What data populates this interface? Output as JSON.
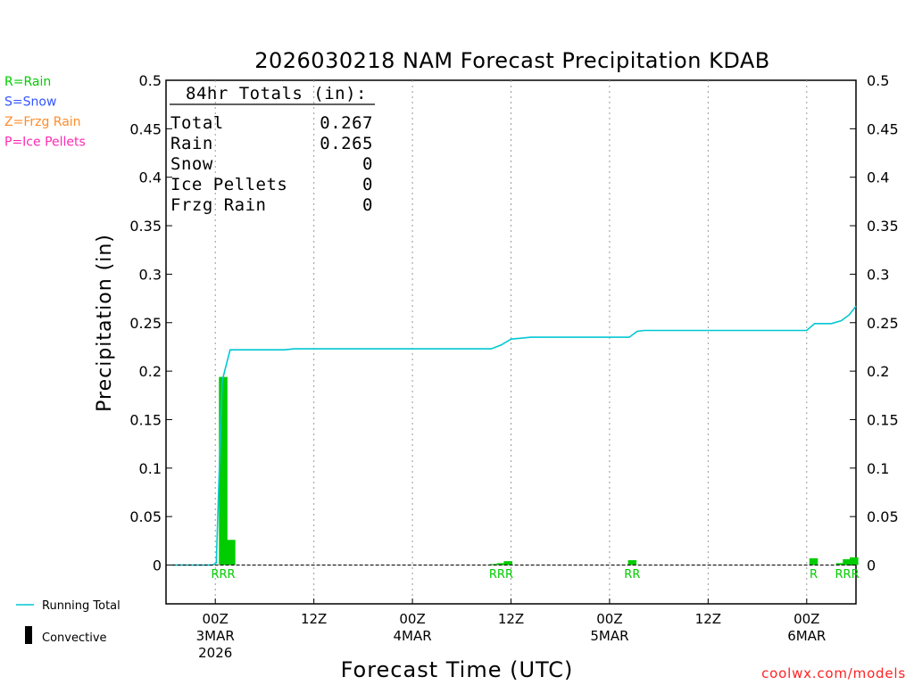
{
  "chart_data": {
    "type": "bar",
    "title": "2026030218 NAM Forecast Precipitation KDAB",
    "ylabel": "Precipitation (in)",
    "xlabel": "Forecast Time (UTC)",
    "ylim": [
      -0.04,
      0.5
    ],
    "xlim_hours": [
      -5,
      65
    ],
    "y_ticks": [
      {
        "v": 0.5,
        "label": "0.5"
      },
      {
        "v": 0.45,
        "label": "0.45"
      },
      {
        "v": 0.4,
        "label": "0.4"
      },
      {
        "v": 0.35,
        "label": "0.35"
      },
      {
        "v": 0.3,
        "label": "0.3"
      },
      {
        "v": 0.25,
        "label": "0.25"
      },
      {
        "v": 0.2,
        "label": "0.2"
      },
      {
        "v": 0.15,
        "label": "0.15"
      },
      {
        "v": 0.1,
        "label": "0.1"
      },
      {
        "v": 0.05,
        "label": "0.05"
      },
      {
        "v": 0,
        "label": "0"
      }
    ],
    "x_ticks": [
      {
        "h": 0,
        "lines": [
          "00Z",
          "3MAR",
          "2026"
        ]
      },
      {
        "h": 10,
        "lines": [
          "12Z"
        ]
      },
      {
        "h": 20,
        "lines": [
          "00Z",
          "4MAR"
        ]
      },
      {
        "h": 30,
        "lines": [
          "12Z"
        ]
      },
      {
        "h": 40,
        "lines": [
          "00Z",
          "5MAR"
        ]
      },
      {
        "h": 50,
        "lines": [
          "12Z"
        ]
      },
      {
        "h": 60,
        "lines": [
          "00Z",
          "6MAR"
        ]
      }
    ],
    "bars": [
      {
        "h": 0.4,
        "value": 0.0
      },
      {
        "h": 0.8,
        "value": 0.194
      },
      {
        "h": 1.6,
        "value": 0.026
      },
      {
        "h": 28.3,
        "value": 0.001
      },
      {
        "h": 29.0,
        "value": 0.002
      },
      {
        "h": 29.7,
        "value": 0.004
      },
      {
        "h": 42.3,
        "value": 0.005
      },
      {
        "h": 60.7,
        "value": 0.007
      },
      {
        "h": 63.4,
        "value": 0.002
      },
      {
        "h": 64.1,
        "value": 0.006
      },
      {
        "h": 64.8,
        "value": 0.008
      }
    ],
    "bar_color": "#00cc00",
    "running_total": {
      "name": "Running Total",
      "color": "#00c8d2",
      "points": [
        [
          -4.4,
          0
        ],
        [
          -0.3,
          0
        ],
        [
          0.1,
          0.002
        ],
        [
          0.7,
          0.19
        ],
        [
          1.5,
          0.222
        ],
        [
          7,
          0.222
        ],
        [
          8,
          0.223
        ],
        [
          28,
          0.223
        ],
        [
          29,
          0.227
        ],
        [
          30,
          0.233
        ],
        [
          31,
          0.234
        ],
        [
          32,
          0.235
        ],
        [
          42,
          0.235
        ],
        [
          42.8,
          0.241
        ],
        [
          43.5,
          0.242
        ],
        [
          60,
          0.242
        ],
        [
          60.8,
          0.249
        ],
        [
          62.5,
          0.249
        ],
        [
          63.5,
          0.252
        ],
        [
          64.3,
          0.258
        ],
        [
          65,
          0.267
        ]
      ]
    },
    "ptype_labels": [
      {
        "h": 0.8,
        "text": "RRR",
        "color": "#00cc00"
      },
      {
        "h": 29.0,
        "text": "RRR",
        "color": "#00cc00"
      },
      {
        "h": 42.3,
        "text": "RR",
        "color": "#00cc00"
      },
      {
        "h": 60.7,
        "text": "R",
        "color": "#00cc00"
      },
      {
        "h": 64.1,
        "text": "RRR",
        "color": "#00cc00"
      }
    ]
  },
  "type_legend": [
    {
      "text": "R=Rain",
      "color": "#00cc00"
    },
    {
      "text": "S=Snow",
      "color": "#3355ff"
    },
    {
      "text": "Z=Frzg Rain",
      "color": "#ff8c2a"
    },
    {
      "text": "P=Ice Pellets",
      "color": "#ff2ab4"
    }
  ],
  "totals": {
    "heading": "84hr Totals (in):",
    "rows": [
      {
        "label": "Total",
        "value": "0.267"
      },
      {
        "label": "Rain",
        "value": "0.265"
      },
      {
        "label": "Snow",
        "value": "0"
      },
      {
        "label": "Ice Pellets",
        "value": "0"
      },
      {
        "label": "Frzg Rain",
        "value": "0"
      }
    ]
  },
  "bottom_legend": {
    "running_total_label": "Running Total",
    "convective_label": "Convective"
  },
  "credit": "coolwx.com/models"
}
